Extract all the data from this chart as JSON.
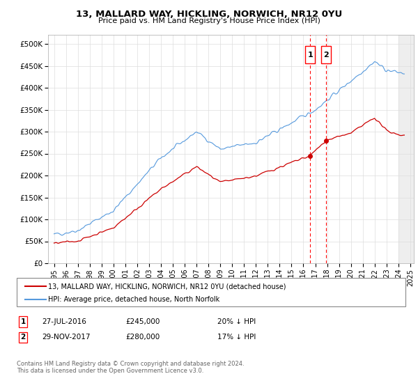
{
  "title": "13, MALLARD WAY, HICKLING, NORWICH, NR12 0YU",
  "subtitle": "Price paid vs. HM Land Registry's House Price Index (HPI)",
  "legend_line1": "13, MALLARD WAY, HICKLING, NORWICH, NR12 0YU (detached house)",
  "legend_line2": "HPI: Average price, detached house, North Norfolk",
  "sale1_date": "27-JUL-2016",
  "sale1_price": 245000,
  "sale1_pct": "20% ↓ HPI",
  "sale2_date": "29-NOV-2017",
  "sale2_price": 280000,
  "sale2_pct": "17% ↓ HPI",
  "footnote": "Contains HM Land Registry data © Crown copyright and database right 2024.\nThis data is licensed under the Open Government Licence v3.0.",
  "red_color": "#cc0000",
  "blue_color": "#5599dd",
  "ylim": [
    0,
    520000
  ],
  "yticks": [
    0,
    50000,
    100000,
    150000,
    200000,
    250000,
    300000,
    350000,
    400000,
    450000,
    500000
  ],
  "ytick_labels": [
    "£0",
    "£50K",
    "£100K",
    "£150K",
    "£200K",
    "£250K",
    "£300K",
    "£350K",
    "£400K",
    "£450K",
    "£500K"
  ],
  "start_year": 1995,
  "end_year": 2025,
  "sale1_x": 2016.57,
  "sale2_x": 2017.91
}
